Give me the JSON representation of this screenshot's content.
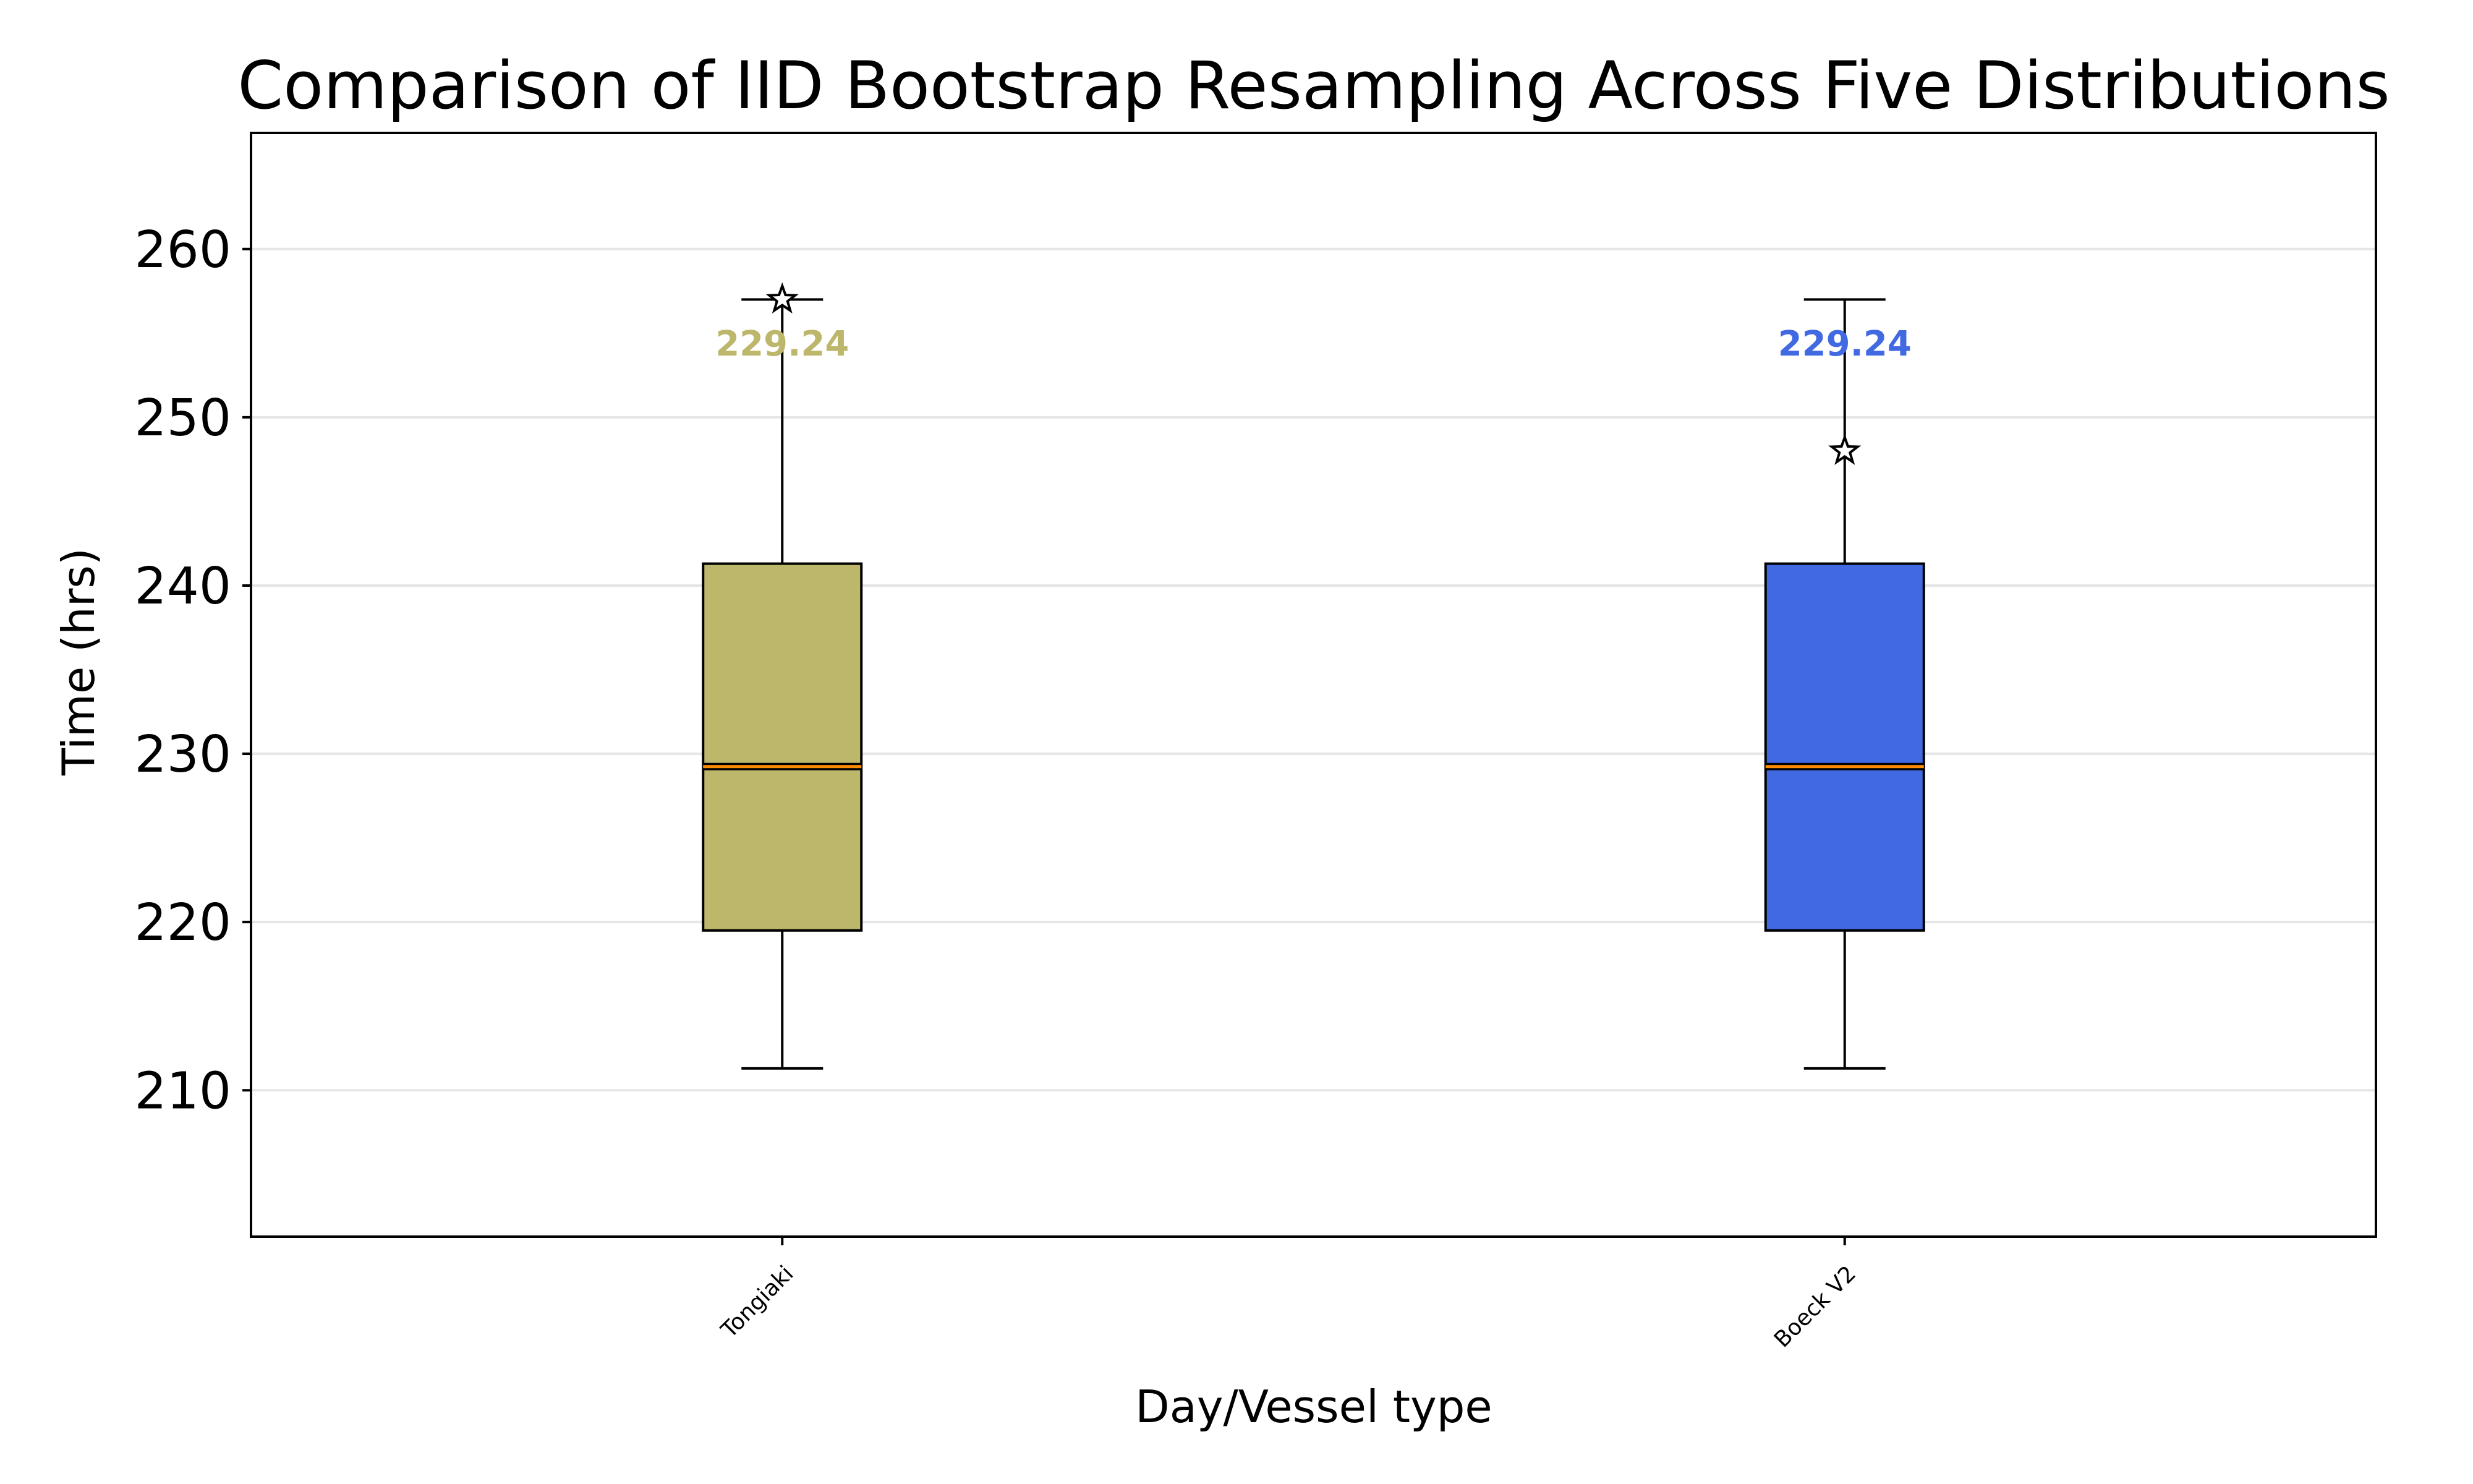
{
  "chart_data": {
    "type": "box",
    "title": "Comparison of IID Bootstrap Resampling Across Five Distributions",
    "xlabel": "Day/Vessel type",
    "ylabel": "Time (hrs)",
    "ylim": [
      201.3,
      266.9
    ],
    "yticks": [
      210,
      220,
      230,
      240,
      250,
      260
    ],
    "ytick_labels": [
      "210",
      "220",
      "230",
      "240",
      "250",
      "260"
    ],
    "grid": "horizontal",
    "categories": [
      "Tongiaki",
      "Boeck V2"
    ],
    "boxes": [
      {
        "label": "Tongiaki",
        "whisker_low": 211.3,
        "q1": 219.5,
        "median": 229.24,
        "q3": 241.3,
        "whisker_high": 257.0,
        "mean_marker": 257.0,
        "color": "#bdb76b",
        "median_label": "229.24"
      },
      {
        "label": "Boeck V2",
        "whisker_low": 211.3,
        "q1": 219.5,
        "median": 229.24,
        "q3": 241.3,
        "whisker_high": 257.0,
        "mean_marker": 248.0,
        "color": "#4169e1",
        "median_label": "229.24"
      }
    ],
    "median_line_color": "#ff8c00"
  }
}
